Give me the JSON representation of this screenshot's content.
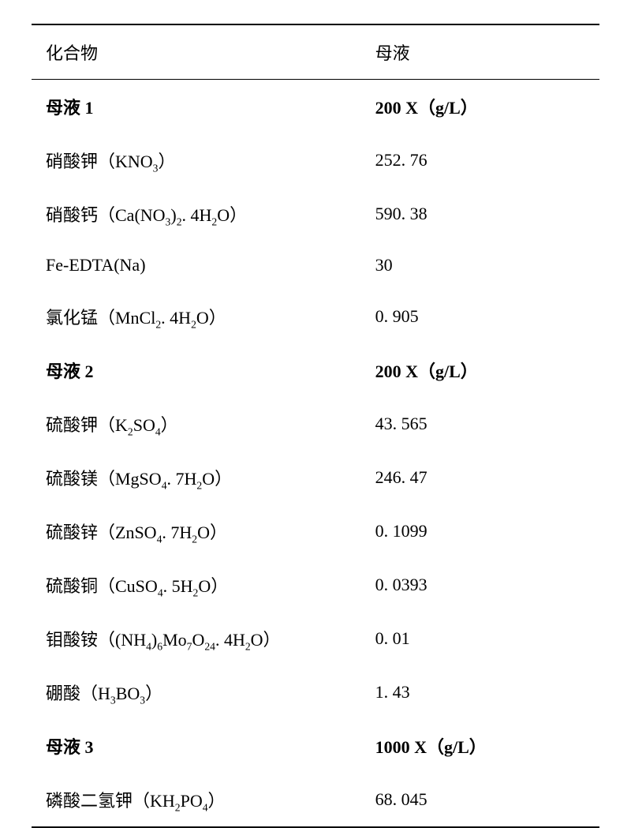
{
  "table": {
    "background_color": "#ffffff",
    "text_color": "#000000",
    "font_family": "SimSun, 宋体, serif",
    "fontsize": 22,
    "border_color": "#000000",
    "border_top_width": 2,
    "border_header_bottom_width": 1.5,
    "border_bottom_width": 2,
    "row_padding_y": 18,
    "col1_width_pct": 58,
    "col2_width_pct": 42,
    "header": {
      "col1": "化合物",
      "col2": "母液"
    },
    "rows": [
      {
        "bold": true,
        "compound_html": "母液 1",
        "value": "200 X（g/L）"
      },
      {
        "bold": false,
        "compound_html": "硝酸钾（KNO<sub>3</sub>）",
        "value": "252. 76"
      },
      {
        "bold": false,
        "compound_html": "硝酸钙（Ca(NO<sub>3</sub>)<sub>2</sub>. 4H<sub>2</sub>O）",
        "value": "590. 38"
      },
      {
        "bold": false,
        "compound_html": "Fe-EDTA(Na)",
        "value": "30"
      },
      {
        "bold": false,
        "compound_html": "氯化锰（MnCl<sub>2</sub>. 4H<sub>2</sub>O）",
        "value": "0. 905"
      },
      {
        "bold": true,
        "compound_html": "母液 2",
        "value": "200 X（g/L）"
      },
      {
        "bold": false,
        "compound_html": "硫酸钾（K<sub>2</sub>SO<sub>4</sub>）",
        "value": "43. 565"
      },
      {
        "bold": false,
        "compound_html": "硫酸镁（MgSO<sub>4</sub>. 7H<sub>2</sub>O）",
        "value": "246. 47"
      },
      {
        "bold": false,
        "compound_html": "硫酸锌（ZnSO<sub>4</sub>. 7H<sub>2</sub>O）",
        "value": "0. 1099"
      },
      {
        "bold": false,
        "compound_html": "硫酸铜（CuSO<sub>4</sub>. 5H<sub>2</sub>O）",
        "value": "0. 0393"
      },
      {
        "bold": false,
        "compound_html": "钼酸铵（(NH<sub>4</sub>)<sub>6</sub>Mo<sub>7</sub>O<sub>24</sub>. 4H<sub>2</sub>O）",
        "value": "0. 01"
      },
      {
        "bold": false,
        "compound_html": "硼酸（H<sub>3</sub>BO<sub>3</sub>）",
        "value": "1. 43"
      },
      {
        "bold": true,
        "compound_html": "母液 3",
        "value": "1000 X（g/L）"
      },
      {
        "bold": false,
        "compound_html": "磷酸二氢钾（KH<sub>2</sub>PO<sub>4</sub>）",
        "value": "68. 045"
      }
    ]
  }
}
